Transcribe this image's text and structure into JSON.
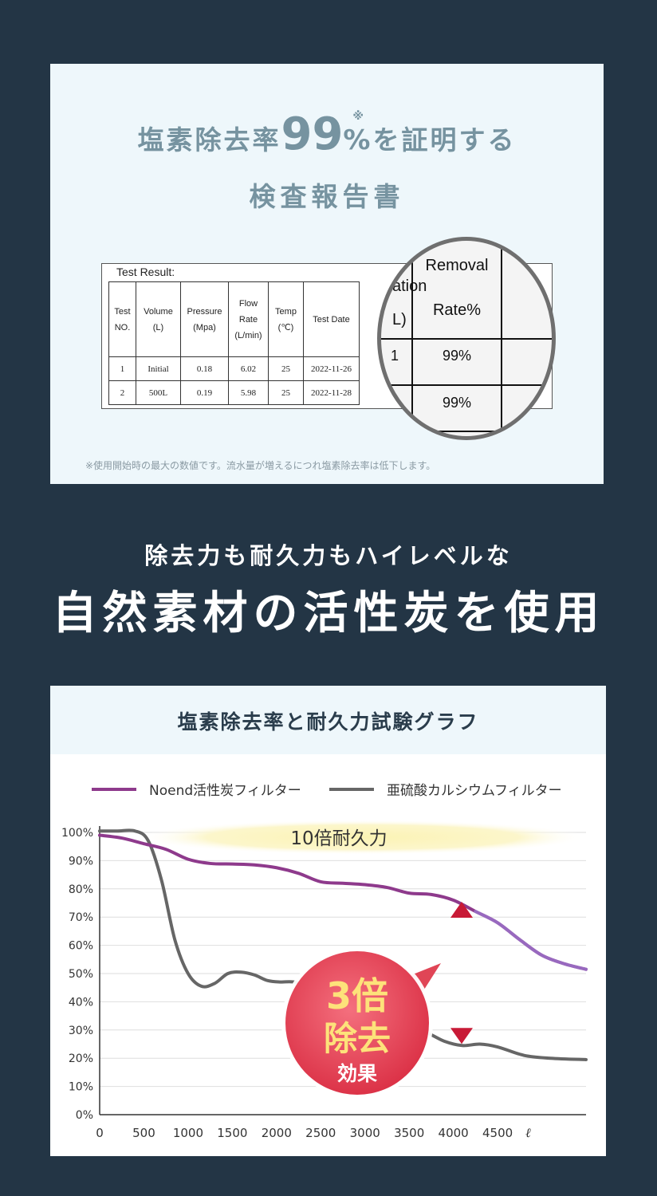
{
  "report_panel": {
    "title_prefix": "塩素除去率",
    "title_number": "99",
    "title_percent": "%",
    "title_mark": "※",
    "title_suffix": "を証明する",
    "subtitle": "検査報告書",
    "footnote": "※使用開始時の最大の数値です。流水量が増えるにつれ塩素除去率は低下します。",
    "document": {
      "caption": "Test Result:",
      "headers": [
        [
          "Test",
          "NO."
        ],
        [
          "Volume",
          "(L)"
        ],
        [
          "Pressure",
          "(Mpa)"
        ],
        [
          "Flow",
          "Rate",
          "(L/min)"
        ],
        [
          "Temp",
          "(℃)"
        ],
        [
          "Test Date"
        ]
      ],
      "rows": [
        [
          "1",
          "Initial",
          "0.18",
          "6.02",
          "25",
          "2022-11-26"
        ],
        [
          "2",
          "500L",
          "0.19",
          "5.98",
          "25",
          "2022-11-28"
        ]
      ]
    },
    "magnifier": {
      "header_line1": "Removal",
      "header_line2": "Rate%",
      "left_fragment1": "ation",
      "left_fragment2": "L)",
      "left_fragment3": "1",
      "values": [
        "99%",
        "99%"
      ]
    }
  },
  "headline": {
    "sub": "除去力も耐久力もハイレベルな",
    "main": "自然素材の活性炭を使用"
  },
  "chart_panel": {
    "title": "塩素除去率と耐久力試験グラフ",
    "banner_text": "10倍耐久力",
    "badge": {
      "line1": "3倍",
      "line2": "除去",
      "line3": "効果"
    },
    "unit_label": "ℓ"
  },
  "chart_data": {
    "type": "line",
    "title": "塩素除去率と耐久力試験グラフ",
    "xlabel": "",
    "ylabel": "",
    "xlim": [
      0,
      5500
    ],
    "ylim": [
      0,
      100
    ],
    "x_ticks": [
      "0",
      "500",
      "1000",
      "1500",
      "2000",
      "2500",
      "3000",
      "3500",
      "4000",
      "4500"
    ],
    "x_tick_values": [
      0,
      500,
      1000,
      1500,
      2000,
      2500,
      3000,
      3500,
      4000,
      4500
    ],
    "y_ticks": [
      "0%",
      "10%",
      "20%",
      "30%",
      "40%",
      "50%",
      "60%",
      "70%",
      "80%",
      "90%",
      "100%"
    ],
    "y_tick_values": [
      0,
      10,
      20,
      30,
      40,
      50,
      60,
      70,
      80,
      90,
      100
    ],
    "grid": true,
    "legend": "top",
    "series": [
      {
        "name": "Noend活性炭フィルター",
        "color": "#8e3a8c",
        "x": [
          0,
          250,
          500,
          750,
          1000,
          1250,
          1500,
          1750,
          2000,
          2250,
          2500,
          2750,
          3000,
          3250,
          3500,
          3750,
          4000,
          4250,
          4500,
          4750,
          5000,
          5250,
          5500
        ],
        "y": [
          99,
          98,
          96,
          94,
          90.5,
          89,
          88.8,
          88.5,
          87.5,
          85.5,
          82.5,
          82,
          81.5,
          80.5,
          78.5,
          78,
          76,
          72,
          68,
          62,
          56.5,
          53.5,
          51.5
        ]
      },
      {
        "name": "亜硫酸カルシウムフィルター",
        "color": "#666666",
        "x": [
          0,
          200,
          400,
          550,
          700,
          850,
          1000,
          1150,
          1300,
          1450,
          1600,
          1750,
          1900,
          2050,
          2200,
          2500,
          2800,
          3100,
          3400,
          3700,
          3900,
          4100,
          4300,
          4500,
          4800,
          5100,
          5500
        ],
        "y": [
          100.5,
          100.5,
          100.5,
          97,
          83,
          62,
          50,
          45.5,
          46.5,
          50,
          50.5,
          49.5,
          47.5,
          47,
          47,
          45,
          40,
          36,
          32,
          29,
          26,
          24.5,
          25,
          24,
          21,
          20,
          19.5
        ]
      }
    ],
    "annotations": [
      "10倍耐久力",
      "3倍除去効果"
    ]
  }
}
